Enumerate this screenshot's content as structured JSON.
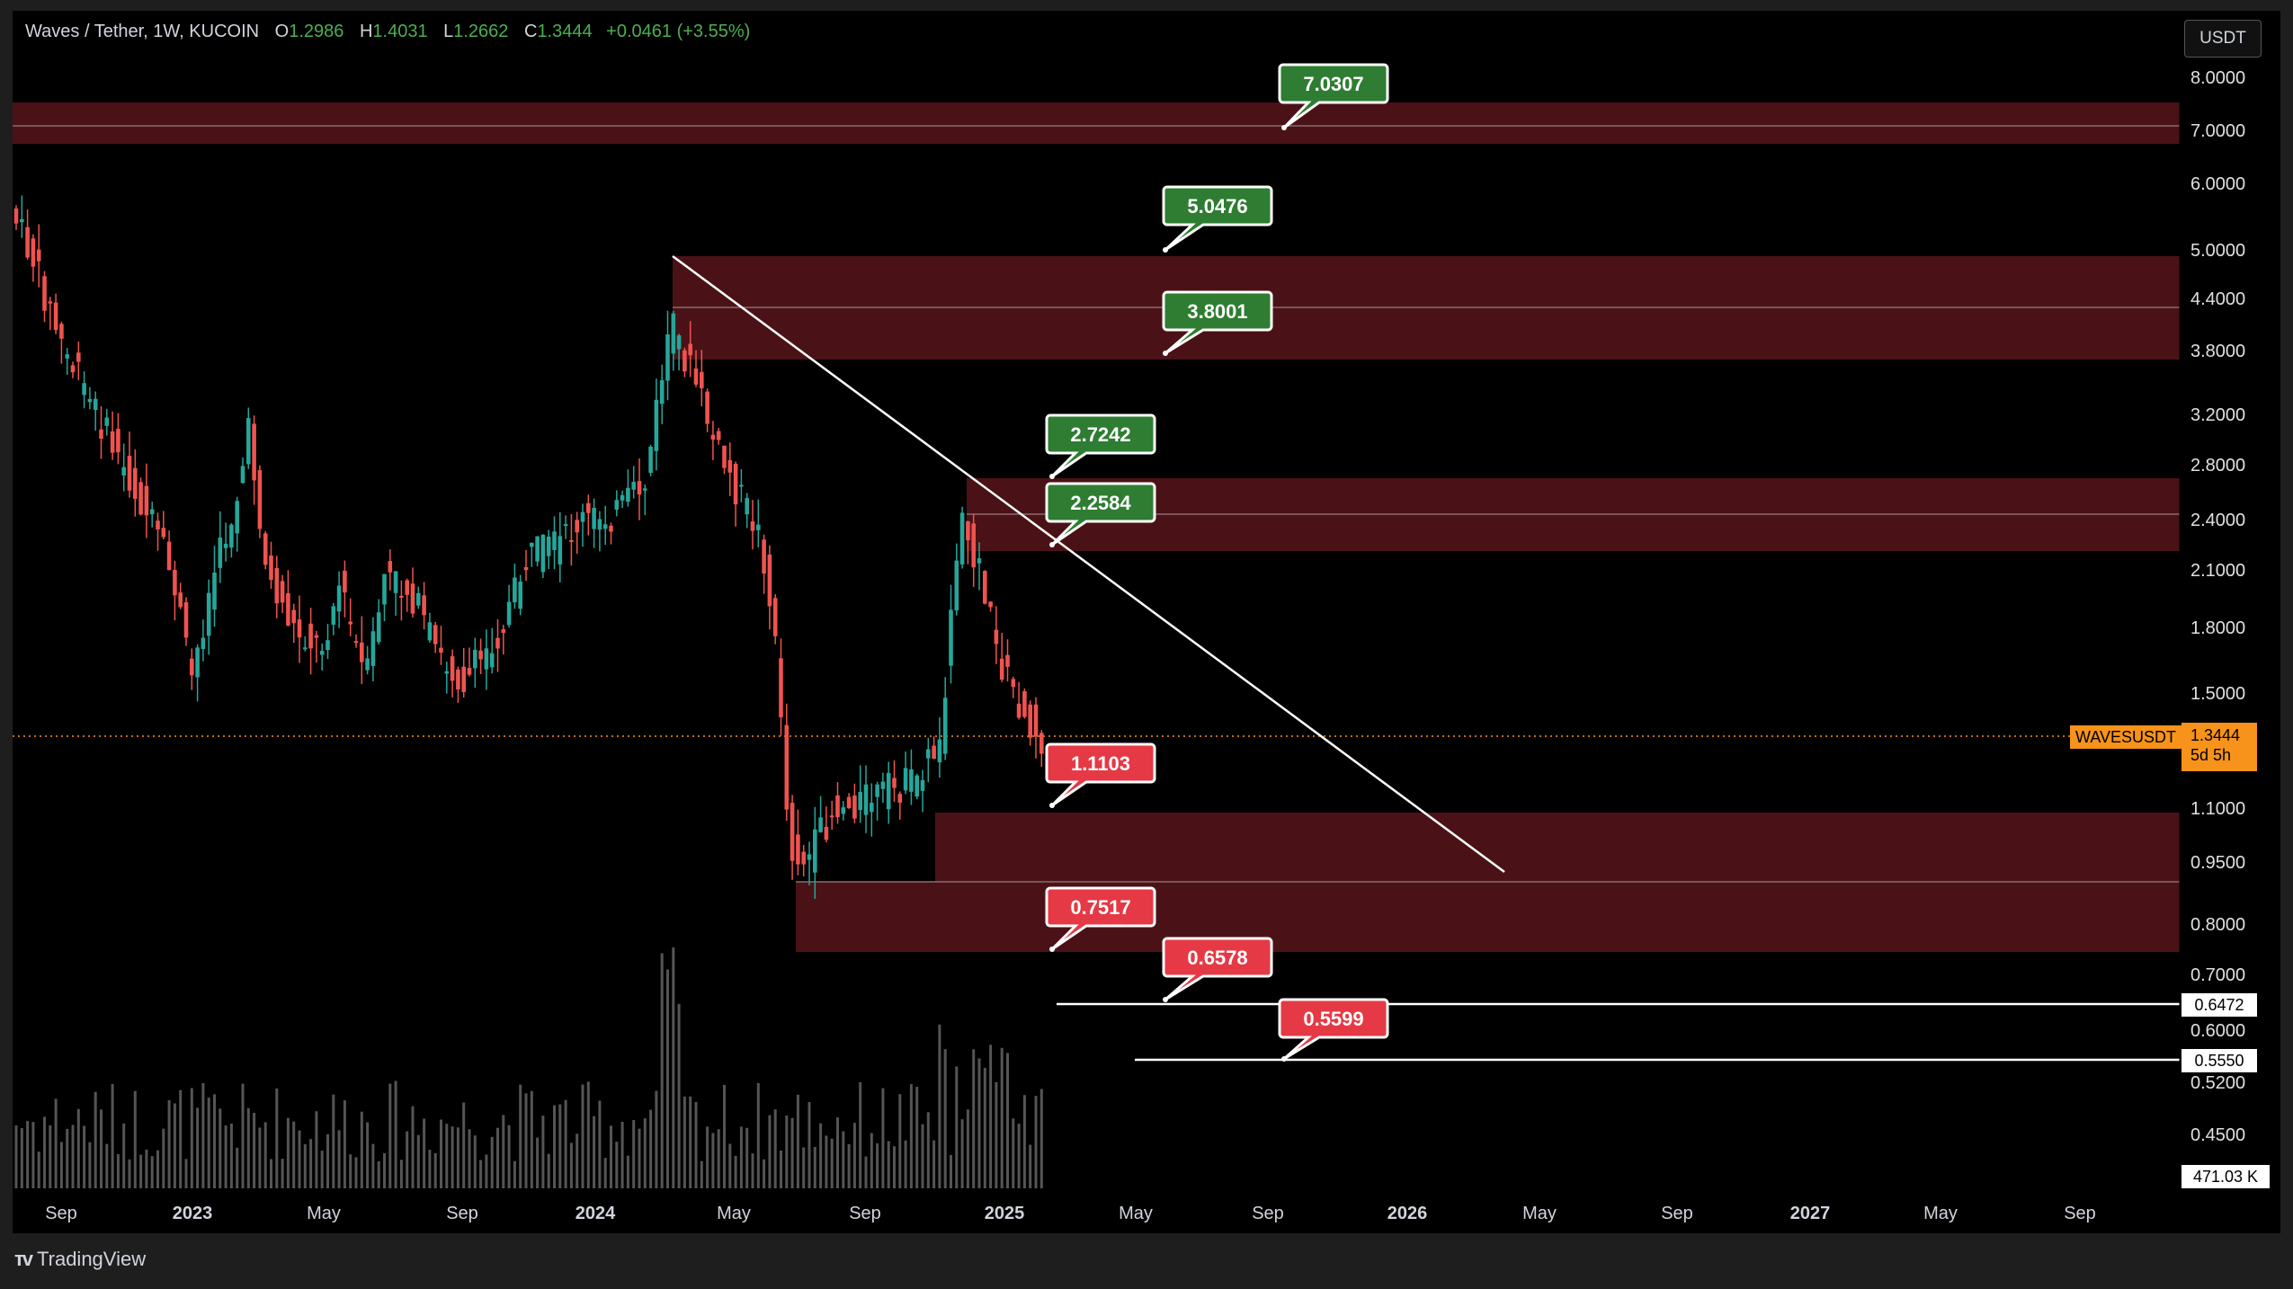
{
  "header": {
    "symbol": "Waves / Tether, 1W, KUCOIN",
    "o_label": "O",
    "o_value": "1.2986",
    "h_label": "H",
    "h_value": "1.4031",
    "l_label": "L",
    "l_value": "1.2662",
    "c_label": "C",
    "c_value": "1.3444",
    "change": "+0.0461 (+3.55%)"
  },
  "price_axis": {
    "unit_button": "USDT",
    "labels": [
      "8.0000",
      "7.0000",
      "6.0000",
      "5.0000",
      "4.4000",
      "3.8000",
      "3.2000",
      "2.8000",
      "2.4000",
      "2.1000",
      "1.8000",
      "1.5000",
      "1.1000",
      "0.9500",
      "0.8000",
      "0.7000",
      "0.6000",
      "0.5200",
      "0.4500"
    ]
  },
  "current_price": {
    "symbol": "WAVESUSDT",
    "price": "1.3444",
    "countdown": "5d 5h"
  },
  "line_labels": [
    "0.6472",
    "0.5550"
  ],
  "volume_label": "471.03 K",
  "time_axis": [
    "Sep",
    "2023",
    "May",
    "Sep",
    "2024",
    "May",
    "Sep",
    "2025",
    "May",
    "Sep",
    "2026",
    "May",
    "Sep",
    "2027",
    "May",
    "Sep"
  ],
  "resistance_tags": [
    "7.0307",
    "5.0476",
    "3.8001",
    "2.7242",
    "2.2584"
  ],
  "support_tags": [
    "1.1103",
    "0.7517",
    "0.6578",
    "0.5599"
  ],
  "brand": "TradingView",
  "colors": {
    "zone": "#4a1217",
    "up": "#26a69a",
    "down": "#ef5350",
    "tag_green": "#2e7d32",
    "tag_red": "#e53945",
    "current_price": "#f7931a"
  }
}
